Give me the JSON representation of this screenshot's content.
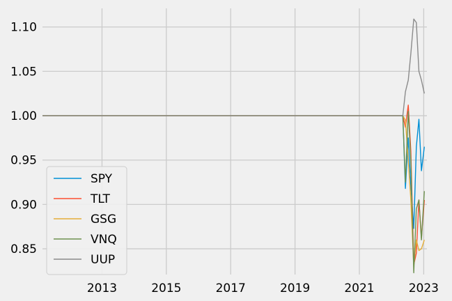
{
  "chart_data": {
    "type": "line",
    "title": "",
    "xlabel": "",
    "ylabel": "",
    "grid": true,
    "legend_position": "lower-left",
    "xlim": [
      2011.15,
      2023.1
    ],
    "ylim": [
      0.821,
      1.121
    ],
    "x_ticks": [
      {
        "value": 2013,
        "label": "2013"
      },
      {
        "value": 2015,
        "label": "2015"
      },
      {
        "value": 2017,
        "label": "2017"
      },
      {
        "value": 2019,
        "label": "2019"
      },
      {
        "value": 2021,
        "label": "2021"
      },
      {
        "value": 2023,
        "label": "2023"
      }
    ],
    "y_ticks": [
      {
        "value": 0.85,
        "label": "0.85"
      },
      {
        "value": 0.9,
        "label": "0.90"
      },
      {
        "value": 0.95,
        "label": "0.95"
      },
      {
        "value": 1.0,
        "label": "1.00"
      },
      {
        "value": 1.05,
        "label": "1.05"
      },
      {
        "value": 1.1,
        "label": "1.10"
      }
    ],
    "series": [
      {
        "name": "SPY",
        "color": "#008fd5",
        "x": [
          2011.15,
          2022.35,
          2022.43,
          2022.52,
          2022.6,
          2022.69,
          2022.77,
          2022.85,
          2022.93,
          2023.02
        ],
        "y": [
          1.0,
          1.0,
          0.918,
          0.975,
          0.92,
          0.873,
          0.965,
          0.996,
          0.938,
          0.965
        ]
      },
      {
        "name": "TLT",
        "color": "#fc4f30",
        "x": [
          2011.15,
          2022.35,
          2022.43,
          2022.52,
          2022.6,
          2022.69,
          2022.77,
          2022.85,
          2022.93,
          2023.02
        ],
        "y": [
          1.0,
          1.0,
          0.987,
          1.012,
          0.96,
          0.832,
          0.845,
          0.905,
          0.862,
          0.905
        ]
      },
      {
        "name": "GSG",
        "color": "#e5ae38",
        "x": [
          2011.15,
          2022.35,
          2022.43,
          2022.52,
          2022.6,
          2022.69,
          2022.77,
          2022.85,
          2022.93,
          2023.02
        ],
        "y": [
          1.0,
          1.0,
          0.995,
          0.95,
          0.905,
          0.83,
          0.86,
          0.848,
          0.85,
          0.86
        ]
      },
      {
        "name": "VNQ",
        "color": "#6d904f",
        "x": [
          2011.15,
          2022.35,
          2022.43,
          2022.52,
          2022.6,
          2022.69,
          2022.77,
          2022.85,
          2022.93,
          2023.02
        ],
        "y": [
          1.0,
          1.0,
          0.925,
          1.005,
          0.95,
          0.823,
          0.895,
          0.905,
          0.86,
          0.915
        ]
      },
      {
        "name": "UUP",
        "color": "#8b8b8b",
        "x": [
          2011.15,
          2022.35,
          2022.43,
          2022.52,
          2022.6,
          2022.69,
          2022.77,
          2022.85,
          2022.93,
          2023.02
        ],
        "y": [
          1.0,
          1.0,
          1.027,
          1.04,
          1.07,
          1.109,
          1.105,
          1.05,
          1.04,
          1.025
        ]
      }
    ]
  }
}
